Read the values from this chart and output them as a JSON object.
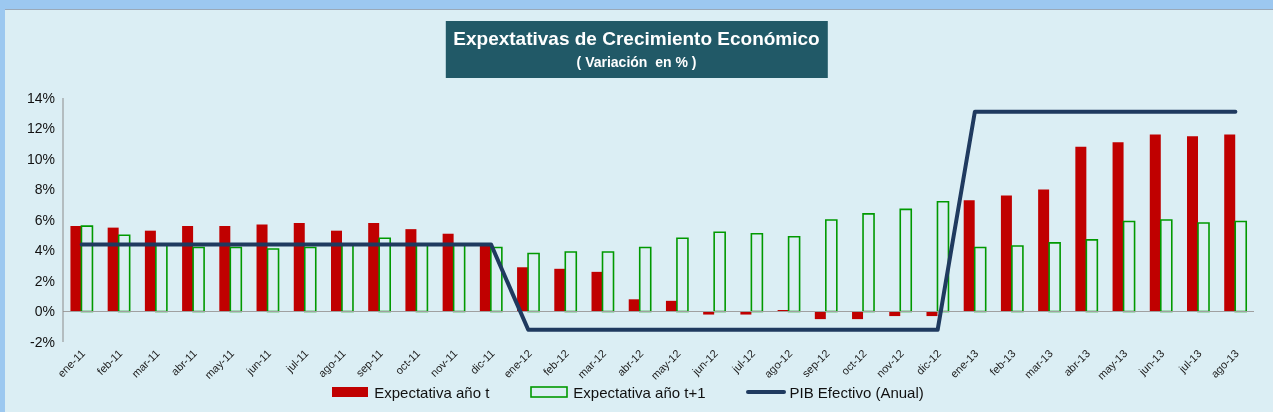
{
  "chart_data": {
    "type": "bar",
    "title": "Expextativas de Crecimiento Económico",
    "subtitle": "( Variación  en % )",
    "categories": [
      "ene-11",
      "feb-11",
      "mar-11",
      "abr-11",
      "may-11",
      "jun-11",
      "jul-11",
      "ago-11",
      "sep-11",
      "oct-11",
      "nov-11",
      "dic-11",
      "ene-12",
      "feb-12",
      "mar-12",
      "abr-12",
      "may-12",
      "jun-12",
      "jul-12",
      "ago-12",
      "sep-12",
      "oct-12",
      "nov-12",
      "dic-12",
      "ene-13",
      "feb-13",
      "mar-13",
      "abr-13",
      "may-13",
      "jun-13",
      "jul-13",
      "ago-13"
    ],
    "series": [
      {
        "name": "Expectativa año t",
        "color": "#c00000",
        "values": [
          5.6,
          5.5,
          5.3,
          5.6,
          5.6,
          5.7,
          5.8,
          5.3,
          5.8,
          5.4,
          5.1,
          4.3,
          2.9,
          2.8,
          2.6,
          0.8,
          0.7,
          -0.2,
          -0.2,
          0.1,
          -0.5,
          -0.5,
          -0.3,
          -0.3,
          7.3,
          7.6,
          8.0,
          10.8,
          11.1,
          11.6,
          11.5,
          11.6
        ]
      },
      {
        "name": "Expectativa año t+1",
        "color": "#009900",
        "values": [
          5.6,
          5.0,
          4.4,
          4.2,
          4.2,
          4.1,
          4.2,
          4.4,
          4.8,
          4.4,
          4.4,
          4.2,
          3.8,
          3.9,
          3.9,
          4.2,
          4.8,
          5.2,
          5.1,
          4.9,
          6.0,
          6.4,
          6.7,
          7.2,
          4.2,
          4.3,
          4.5,
          4.7,
          5.9,
          6.0,
          5.8,
          5.9
        ]
      },
      {
        "name": "PIB Efectivo (Anual)",
        "type": "line",
        "color": "#1f3a5f",
        "values": [
          4.4,
          4.4,
          4.4,
          4.4,
          4.4,
          4.4,
          4.4,
          4.4,
          4.4,
          4.4,
          4.4,
          4.4,
          -1.2,
          -1.2,
          -1.2,
          -1.2,
          -1.2,
          -1.2,
          -1.2,
          -1.2,
          -1.2,
          -1.2,
          -1.2,
          -1.2,
          13.1,
          13.1,
          13.1,
          13.1,
          13.1,
          13.1,
          13.1,
          13.1
        ]
      }
    ],
    "ylim": [
      -2,
      14
    ],
    "yticks": [
      {
        "value": -2,
        "label": "-2%"
      },
      {
        "value": 0,
        "label": "0%"
      },
      {
        "value": 2,
        "label": "2%"
      },
      {
        "value": 4,
        "label": "4%"
      },
      {
        "value": 6,
        "label": "6%"
      },
      {
        "value": 8,
        "label": "8%"
      },
      {
        "value": 10,
        "label": "10%"
      },
      {
        "value": 12,
        "label": "12%"
      },
      {
        "value": 14,
        "label": "14%"
      }
    ],
    "legend": "bottom"
  }
}
